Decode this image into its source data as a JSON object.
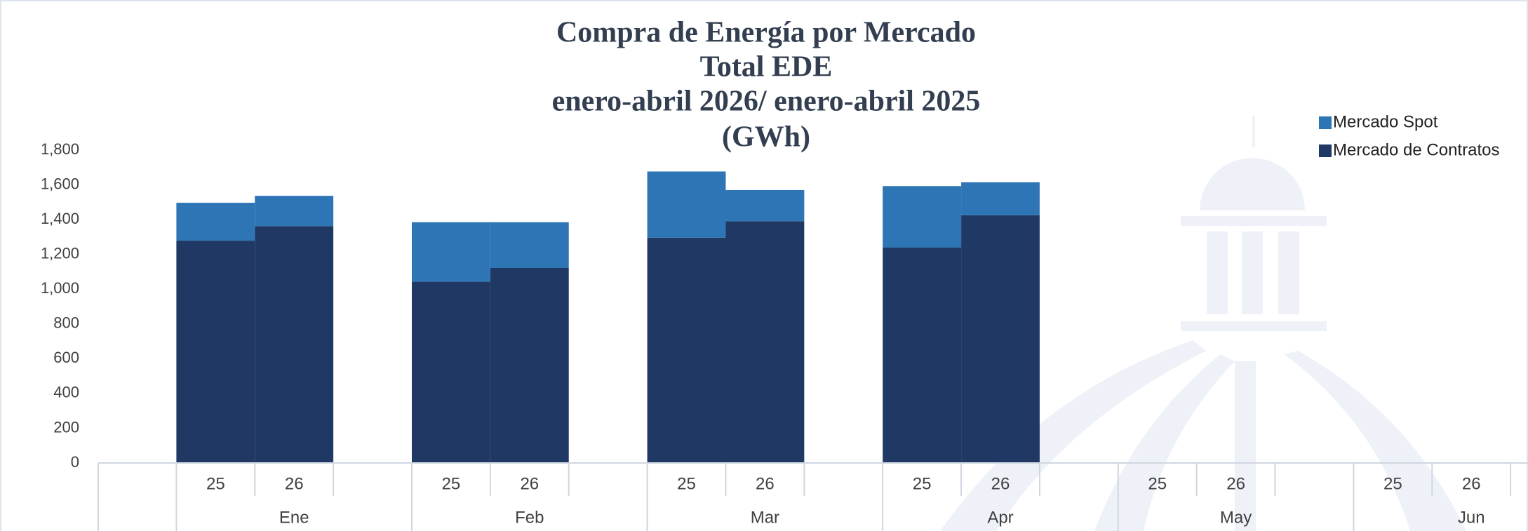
{
  "chart_data": {
    "type": "stacked_bar",
    "title": [
      "Compra de Energía por Mercado",
      "Total EDE",
      "enero-abril 2026/ enero-abril 2025",
      "(GWh)"
    ],
    "groups": [
      "Ene",
      "Feb",
      "Mar",
      "Apr",
      "May",
      "Jun"
    ],
    "categories": [
      "25",
      "26",
      "25",
      "26",
      "25",
      "26",
      "25",
      "26",
      "25",
      "26",
      "25",
      "26"
    ],
    "series": [
      {
        "name": "Mercado de Contratos",
        "color": "#203864",
        "values": [
          1279,
          1363,
          1043,
          1122,
          1296,
          1391,
          1239,
          1425,
          null,
          null,
          null,
          null
        ]
      },
      {
        "name": "Mercado Spot",
        "color": "#2e75b6",
        "values": [
          218,
          174,
          342,
          263,
          381,
          179,
          354,
          190,
          null,
          null,
          null,
          null
        ]
      }
    ],
    "ylim": [
      0,
      1800
    ],
    "yticks": [
      0,
      200,
      400,
      600,
      800,
      {
        "value": 1000,
        "label": "1,000"
      },
      {
        "value": 1200,
        "label": "1,200"
      },
      {
        "value": 1400,
        "label": "1,400"
      },
      {
        "value": 1600,
        "label": "1,600"
      },
      {
        "value": 1800,
        "label": "1,800"
      }
    ],
    "legend": "top-right"
  }
}
